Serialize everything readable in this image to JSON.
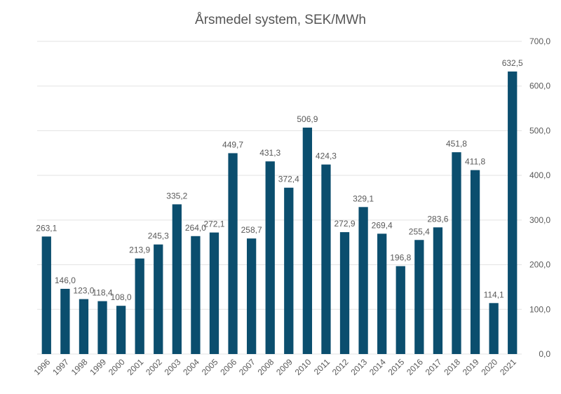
{
  "chart_data": {
    "type": "bar",
    "title": "Årsmedel system, SEK/MWh",
    "xlabel": "",
    "ylabel": "",
    "ylim": [
      0,
      700
    ],
    "yticks": [
      "0,0",
      "100,0",
      "200,0",
      "300,0",
      "400,0",
      "500,0",
      "600,0",
      "700,0"
    ],
    "y_axis_side": "right",
    "grid": true,
    "categories": [
      "1996",
      "1997",
      "1998",
      "1999",
      "2000",
      "2001",
      "2002",
      "2003",
      "2004",
      "2005",
      "2006",
      "2007",
      "2008",
      "2009",
      "2010",
      "2011",
      "2012",
      "2013",
      "2014",
      "2015",
      "2016",
      "2017",
      "2018",
      "2019",
      "2020",
      "2021"
    ],
    "values": [
      263.1,
      146.0,
      123.0,
      118.4,
      108.0,
      213.9,
      245.3,
      335.2,
      264.0,
      272.1,
      449.7,
      258.7,
      431.3,
      372.4,
      506.9,
      424.3,
      272.9,
      329.1,
      269.4,
      196.8,
      255.4,
      283.6,
      451.8,
      411.8,
      114.1,
      632.5
    ],
    "value_labels": [
      "263,1",
      "146,0",
      "123,0",
      "118,4",
      "108,0",
      "213,9",
      "245,3",
      "335,2",
      "264,0",
      "272,1",
      "449,7",
      "258,7",
      "431,3",
      "372,4",
      "506,9",
      "424,3",
      "272,9",
      "329,1",
      "269,4",
      "196,8",
      "255,4",
      "283,6",
      "451,8",
      "411,8",
      "114,1",
      "632,5"
    ],
    "colors": {
      "bar": "#0b4e6e",
      "grid": "#e3e3e3",
      "text": "#595959"
    }
  }
}
